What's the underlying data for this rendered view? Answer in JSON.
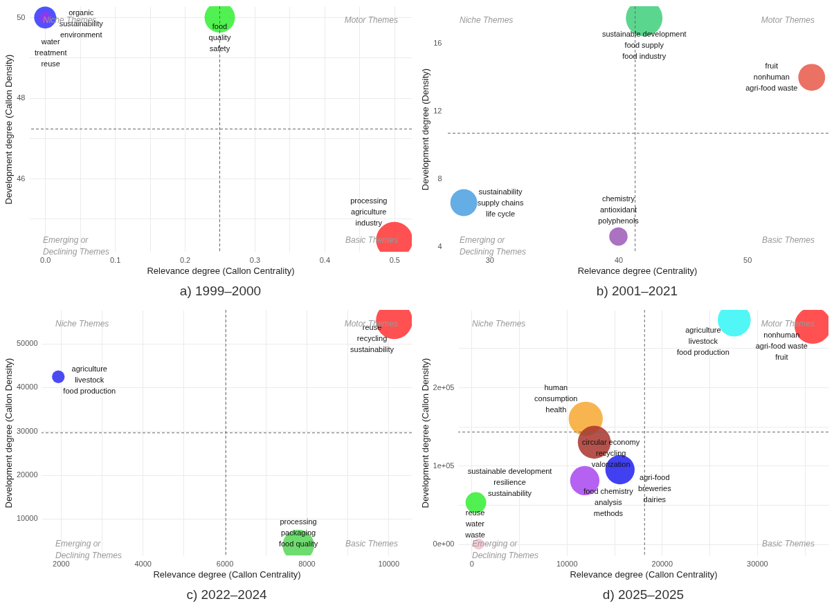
{
  "chart_data": [
    {
      "type": "bubble",
      "title": "a) 1999–2000",
      "xlabel": "Relevance degree (Callon Centrality)",
      "ylabel": "Development degree (Callon Density)",
      "grid": true,
      "x": [
        0,
        0,
        0.25,
        0.5
      ],
      "values": [
        50,
        50,
        50,
        44.47
      ],
      "sizes": [
        0.36,
        0.09,
        0.69,
        1
      ],
      "colors": [
        "#3333ff",
        "#9933ee",
        "#33ee33",
        "#ff3333"
      ],
      "xlim": [
        -0.023,
        0.525
      ],
      "ylim": [
        44.18,
        50.28
      ],
      "xticks": [
        {
          "value": 0,
          "label": "0.0"
        },
        {
          "value": 0.05,
          "label": null
        },
        0.1,
        {
          "value": 0.15,
          "label": null
        },
        0.2,
        {
          "value": 0.25,
          "label": null
        },
        0.3,
        {
          "value": 0.35,
          "label": null
        },
        0.4,
        {
          "value": 0.45,
          "label": null
        },
        0.5
      ],
      "yticks": [
        {
          "value": 45,
          "label": null
        },
        46,
        {
          "value": 47,
          "label": null
        },
        48,
        {
          "value": 49,
          "label": null
        },
        50
      ],
      "ref_lines": [
        {
          "axis": "x",
          "value": 0.25,
          "line_style": "dashed"
        },
        {
          "axis": "y",
          "value": 47.23,
          "line_style": "dashed"
        }
      ],
      "annotations": [
        {
          "text": "water\ntreatment\nreuse",
          "x": 0,
          "y": 50
        },
        {
          "text": "organic\nsustainability\nenvironment",
          "x": 0,
          "y": 50
        },
        {
          "text": "food\nquality\nsafety",
          "x": 0.25,
          "y": 50
        },
        {
          "text": "processing\nagriculture\nindustry",
          "x": 0.5,
          "y": 44.47
        },
        "Niche Themes",
        "Motor Themes",
        "Emerging or\nDeclining Themes",
        "Basic Themes"
      ]
    },
    {
      "type": "bubble",
      "title": "b) 2001–2021",
      "xlabel": "Relevance degree (Centrality)",
      "ylabel": "Development degree (Density)",
      "grid": false,
      "x": [
        42,
        55,
        28,
        40
      ],
      "values": [
        17.5,
        14,
        6.6,
        4.6
      ],
      "sizes": [
        1,
        0.54,
        0.54,
        0.25
      ],
      "colors": [
        "#3ecf7a",
        "#e8584a",
        "#4a9fe0",
        "#9b59b6"
      ],
      "xlim": [
        26.6,
        56.3
      ],
      "ylim": [
        3.7,
        18.2
      ],
      "xticks": [
        30,
        40,
        50
      ],
      "yticks": [
        4,
        8,
        12,
        16
      ],
      "ref_lines": [
        {
          "axis": "x",
          "value": 41.3,
          "line_style": "dashed"
        },
        {
          "axis": "y",
          "value": 10.7,
          "line_style": "dashed"
        }
      ],
      "annotations": [
        {
          "text": "sustainable development\nfood supply\nfood industry",
          "x": 42,
          "y": 17.5
        },
        {
          "text": "fruit\nnonhuman\nagri-food waste",
          "x": 55,
          "y": 14
        },
        {
          "text": "sustainability\nsupply chains\nlife cycle",
          "x": 28,
          "y": 6.6
        },
        {
          "text": "chemistry\nantioxidant\npolyphenols",
          "x": 40,
          "y": 4.6
        },
        "Niche Themes",
        "Motor Themes",
        "Emerging or\nDeclining Themes",
        "Basic Themes"
      ]
    },
    {
      "type": "bubble",
      "title": "c) 2022–2024",
      "xlabel": "Relevance degree (Callon Centrality)",
      "ylabel": "Development degree (Callon Density)",
      "grid": true,
      "x": [
        1940,
        10140,
        7800
      ],
      "values": [
        42400,
        55200,
        3900
      ],
      "sizes": [
        0.12,
        1,
        0.74
      ],
      "colors": [
        "#2b2bf0",
        "#ff3333",
        "#55d655"
      ],
      "xlim": [
        1530,
        10570
      ],
      "ylim": [
        1600,
        57680
      ],
      "xticks": [
        2000,
        {
          "value": 3000,
          "label": null
        },
        4000,
        {
          "value": 5000,
          "label": null
        },
        6000,
        {
          "value": 7000,
          "label": null
        },
        8000,
        {
          "value": 9000,
          "label": null
        },
        10000
      ],
      "yticks": [
        10000,
        20000,
        30000,
        40000,
        50000
      ],
      "ref_lines": [
        {
          "axis": "x",
          "value": 6030,
          "line_style": "dashed"
        },
        {
          "axis": "y",
          "value": 29600,
          "line_style": "dashed"
        }
      ],
      "annotations": [
        {
          "text": "agriculture\nlivestock\nfood production",
          "x": 1940,
          "y": 42400
        },
        {
          "text": "reuse\nrecycling\nsustainability",
          "x": 10140,
          "y": 55200
        },
        {
          "text": "processing\npackaging\nfood quality",
          "x": 7800,
          "y": 3900
        },
        "Niche Themes",
        "Motor Themes",
        "Emerging or\nDeclining Themes",
        "Basic Themes"
      ]
    },
    {
      "type": "bubble",
      "title": "d) 2025–2025",
      "xlabel": "Relevance degree (Callon Centrality)",
      "ylabel": "Development degree (Callon Density)",
      "grid": true,
      "x": [
        27600,
        35850,
        12000,
        12900,
        15600,
        11900,
        460,
        750
      ],
      "values": [
        286000,
        279000,
        160000,
        130000,
        95000,
        81000,
        53000,
        0
      ],
      "sizes": [
        0.81,
        1,
        0.87,
        0.81,
        0.64,
        0.64,
        0.32,
        0.09
      ],
      "colors": [
        "#33f5f5",
        "#ff3333",
        "#f7a830",
        "#a8342c",
        "#2020f0",
        "#a845f0",
        "#33ee33",
        "#f7c0cb"
      ],
      "xlim": [
        -1400,
        37500
      ],
      "ylim": [
        -14500,
        299000
      ],
      "xticks": [
        0,
        {
          "value": 5000,
          "label": null
        },
        10000,
        {
          "value": 15000,
          "label": null
        },
        20000,
        {
          "value": 25000,
          "label": null
        },
        30000,
        {
          "value": 35000,
          "label": null
        }
      ],
      "yticks": [
        {
          "value": 0,
          "label": "0e+00"
        },
        {
          "value": 50000,
          "label": null
        },
        {
          "value": 100000,
          "label": "1e+05"
        },
        {
          "value": 150000,
          "label": null
        },
        {
          "value": 200000,
          "label": "2e+05"
        },
        {
          "value": 250000,
          "label": null
        }
      ],
      "ref_lines": [
        {
          "axis": "x",
          "value": 18180,
          "line_style": "dashed"
        },
        {
          "axis": "y",
          "value": 143000,
          "line_style": "dashed"
        }
      ],
      "annotations": [
        {
          "text": "agriculture\nlivestock\nfood production",
          "x": 27600,
          "y": 286000
        },
        {
          "text": "nonhuman\nagri-food waste\nfruit",
          "x": 35850,
          "y": 279000
        },
        {
          "text": "human\nconsumption\nhealth",
          "x": 12000,
          "y": 160000
        },
        {
          "text": "circular economy\nrecycling\nvalorization",
          "x": 12900,
          "y": 130000
        },
        {
          "text": "agri-food\nbreweries\ndairies",
          "x": 15600,
          "y": 95000
        },
        {
          "text": "food chemistry\nanalysis\nmethods",
          "x": 11900,
          "y": 81000
        },
        {
          "text": "sustainable development\nresilience\nsustainability",
          "x": 460,
          "y": 53000
        },
        {
          "text": "reuse\nwater\nwaste",
          "x": 750,
          "y": 0
        },
        "Niche Themes",
        "Motor Themes",
        "Emerging or\nDeclining Themes",
        "Basic Themes"
      ]
    }
  ]
}
